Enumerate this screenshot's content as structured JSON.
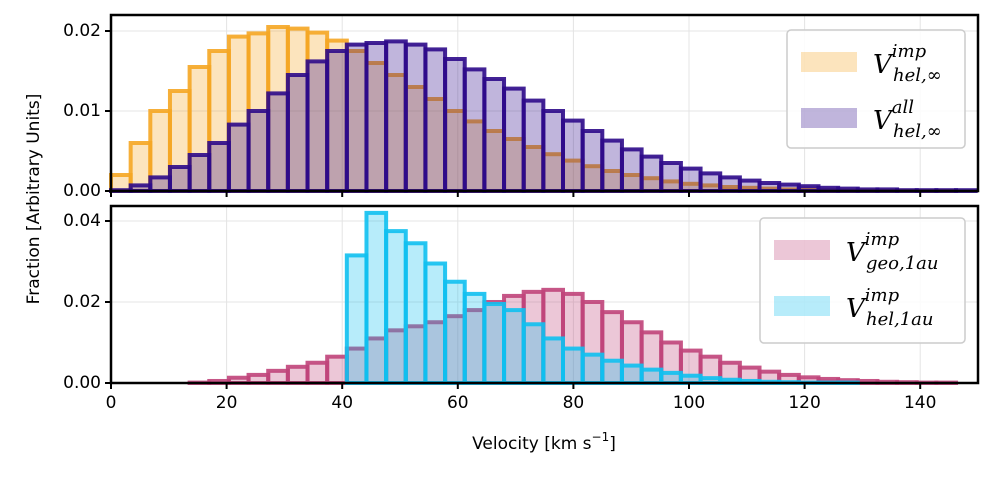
{
  "chart_data": [
    {
      "type": "histogram",
      "ylabel": "Fraction [Arbitrary Units]",
      "bins": [
        0,
        3.4,
        6.8,
        10.2,
        13.6,
        17,
        20.4,
        23.8,
        27.2,
        30.6,
        34,
        37.4,
        40.8,
        44.2,
        47.6,
        51,
        54.4,
        57.8,
        61.2,
        64.6,
        68,
        71.4,
        74.8,
        78.2,
        81.6,
        85,
        88.4,
        91.8,
        95.2,
        98.6,
        102,
        105.4,
        108.8,
        112.2,
        115.6,
        119,
        122.4,
        125.8,
        129.2,
        132.6,
        136,
        139.4,
        142.8,
        146.2,
        149.6
      ],
      "series": [
        {
          "name": {
            "base": "V",
            "sub": "hel,∞",
            "sup": "imp"
          },
          "color": "#f5a623",
          "values": [
            0.002,
            0.006,
            0.01,
            0.0125,
            0.0155,
            0.0175,
            0.0193,
            0.0197,
            0.0205,
            0.0203,
            0.0198,
            0.0188,
            0.0175,
            0.016,
            0.0145,
            0.013,
            0.0115,
            0.01,
            0.0087,
            0.0075,
            0.0065,
            0.0055,
            0.0046,
            0.0038,
            0.0031,
            0.0025,
            0.002,
            0.0016,
            0.0012,
            0.0009,
            0.0007,
            0.0005,
            0.0004,
            0.0003,
            0.0002,
            0.00015,
            0.0001,
            7e-05,
            5e-05,
            3e-05,
            2e-05,
            1e-05,
            1e-05,
            0
          ]
        },
        {
          "name": {
            "base": "V",
            "sub": "hel,∞",
            "sup": "all"
          },
          "color": "#2e0a8a",
          "values": [
            0.0001,
            0.0007,
            0.0017,
            0.003,
            0.0045,
            0.006,
            0.0083,
            0.01,
            0.0122,
            0.0145,
            0.0162,
            0.0175,
            0.0183,
            0.0185,
            0.0187,
            0.0183,
            0.0177,
            0.0165,
            0.0152,
            0.014,
            0.0128,
            0.0113,
            0.01,
            0.0088,
            0.0075,
            0.0063,
            0.0052,
            0.0043,
            0.0035,
            0.0028,
            0.0022,
            0.0017,
            0.0013,
            0.001,
            0.0008,
            0.0006,
            0.0004,
            0.0003,
            0.0002,
            0.0002,
            0.0001,
            0.0001,
            0.0001,
            0.0001
          ]
        }
      ],
      "xlim": [
        0,
        150
      ],
      "xticks": [
        0,
        20,
        40,
        60,
        80,
        100,
        120,
        140
      ],
      "ylim": [
        0,
        0.022
      ],
      "yticks": [
        {
          "value": 0,
          "label": "0.00"
        },
        {
          "value": 0.01,
          "label": "0.01"
        },
        {
          "value": 0.02,
          "label": "0.02"
        }
      ],
      "grid": true,
      "legend": "upper right"
    },
    {
      "type": "histogram",
      "xlabel": {
        "text": "Velocity [km s",
        "sup": "−1",
        "end": "]"
      },
      "bins": [
        0,
        3.4,
        6.8,
        10.2,
        13.6,
        17,
        20.4,
        23.8,
        27.2,
        30.6,
        34,
        37.4,
        40.8,
        44.2,
        47.6,
        51,
        54.4,
        57.8,
        61.2,
        64.6,
        68,
        71.4,
        74.8,
        78.2,
        81.6,
        85,
        88.4,
        91.8,
        95.2,
        98.6,
        102,
        105.4,
        108.8,
        112.2,
        115.6,
        119,
        122.4,
        125.8,
        129.2,
        132.6,
        136,
        139.4,
        142.8,
        146.2,
        149.6
      ],
      "series": [
        {
          "name": {
            "base": "V",
            "sub": "geo,1au",
            "sup": "imp"
          },
          "color": "#c0447a",
          "values": [
            0,
            0,
            0,
            0,
            0.0001,
            0.0005,
            0.0013,
            0.002,
            0.003,
            0.004,
            0.005,
            0.0065,
            0.0085,
            0.011,
            0.013,
            0.014,
            0.015,
            0.0165,
            0.018,
            0.02,
            0.0215,
            0.0225,
            0.023,
            0.022,
            0.02,
            0.0175,
            0.015,
            0.0125,
            0.01,
            0.008,
            0.0065,
            0.005,
            0.0038,
            0.0028,
            0.002,
            0.0014,
            0.001,
            0.0007,
            0.0005,
            0.0003,
            0.0002,
            0.0001,
            0.0001,
            0
          ]
        },
        {
          "name": {
            "base": "V",
            "sub": "hel,1au",
            "sup": "imp"
          },
          "color": "#10c0f0",
          "values": [
            0,
            0,
            0,
            0,
            0,
            0,
            0,
            0,
            0,
            0,
            0,
            0,
            0.0315,
            0.042,
            0.0375,
            0.0345,
            0.0295,
            0.025,
            0.022,
            0.0195,
            0.018,
            0.0145,
            0.011,
            0.0085,
            0.007,
            0.0055,
            0.0043,
            0.0033,
            0.0025,
            0.0018,
            0.0012,
            0.0008,
            0.0005,
            0.0003,
            0.0002,
            0.0001,
            0.0001,
            0.0001,
            0,
            0,
            0,
            0,
            0,
            0
          ]
        }
      ],
      "xlim": [
        0,
        150
      ],
      "xticks": [
        0,
        20,
        40,
        60,
        80,
        100,
        120,
        140
      ],
      "ylim": [
        0,
        0.0437
      ],
      "yticks": [
        {
          "value": 0,
          "label": "0.00"
        },
        {
          "value": 0.02,
          "label": "0.02"
        },
        {
          "value": 0.04,
          "label": "0.04"
        }
      ],
      "grid": true,
      "legend": "upper right"
    }
  ]
}
